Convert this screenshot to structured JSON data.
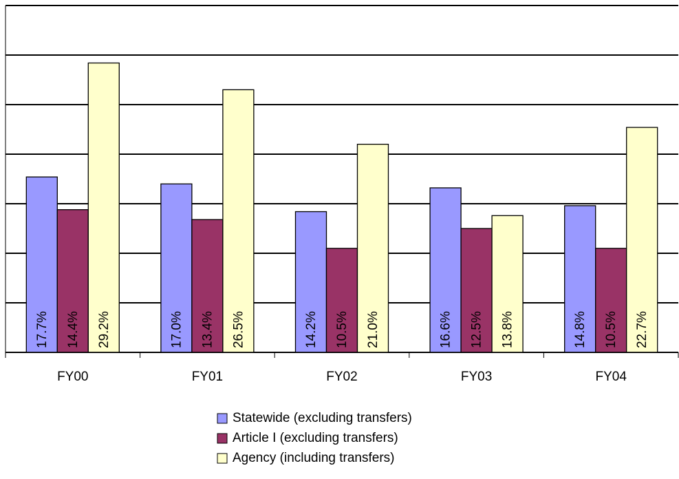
{
  "chart_data": {
    "type": "bar",
    "categories": [
      "FY00",
      "FY01",
      "FY02",
      "FY03",
      "FY04"
    ],
    "series": [
      {
        "name": "Statewide (excluding transfers)",
        "color": "#9999ff",
        "values": [
          17.7,
          17.0,
          14.2,
          16.6,
          14.8
        ],
        "value_labels": [
          "17.7%",
          "17.0%",
          "14.2%",
          "16.6%",
          "14.8%"
        ]
      },
      {
        "name": "Article I (excluding transfers)",
        "color": "#993366",
        "values": [
          14.4,
          13.4,
          10.5,
          12.5,
          10.5
        ],
        "value_labels": [
          "14.4%",
          "13.4%",
          "10.5%",
          "12.5%",
          "10.5%"
        ]
      },
      {
        "name": "Agency (including transfers)",
        "color": "#ffffcc",
        "values": [
          29.2,
          26.5,
          21.0,
          13.8,
          22.7
        ],
        "value_labels": [
          "29.2%",
          "26.5%",
          "21.0%",
          "13.8%",
          "22.7%"
        ]
      }
    ],
    "ylim": [
      0,
      35
    ],
    "yticks": [
      0,
      5,
      10,
      15,
      20,
      25,
      30,
      35
    ],
    "grid": true
  }
}
